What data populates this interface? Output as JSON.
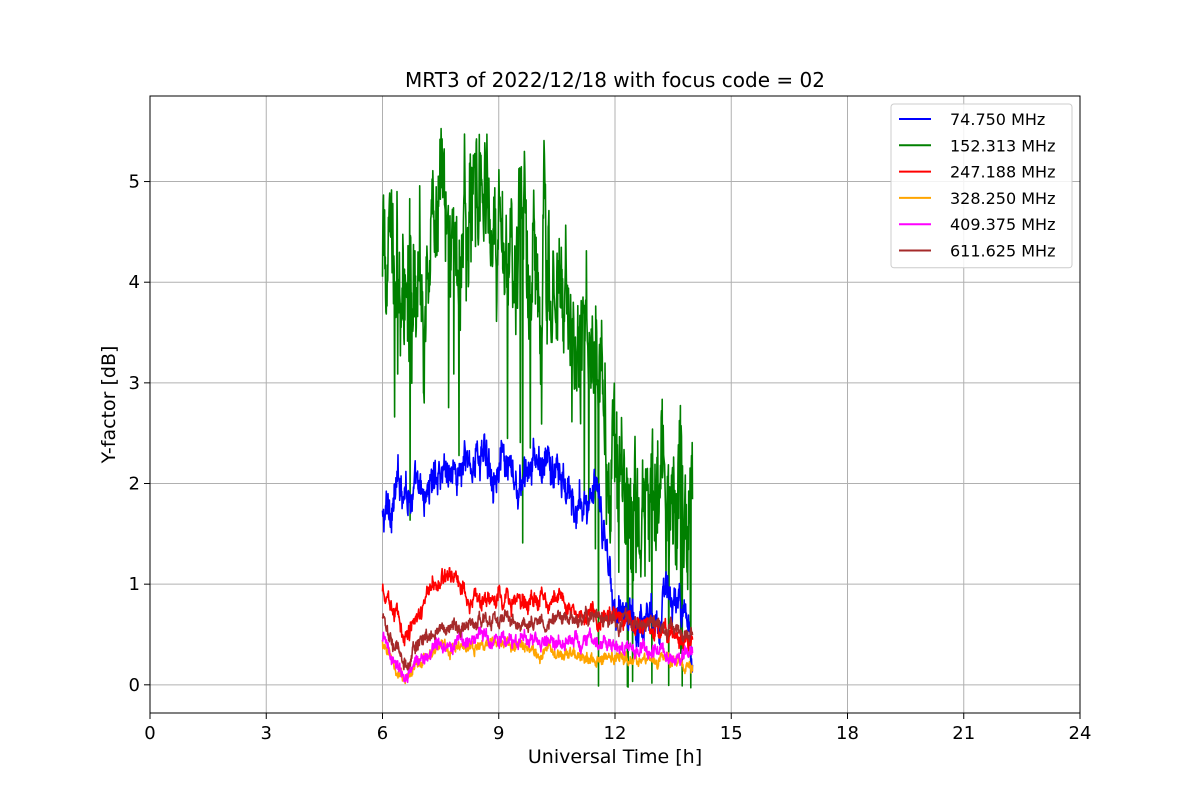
{
  "chart_data": {
    "type": "line",
    "title": "MRT3 of 2022/12/18 with focus code = 02",
    "xlabel": "Universal Time [h]",
    "ylabel": "Y-factor [dB]",
    "xlim": [
      0,
      24
    ],
    "ylim": [
      -0.28,
      5.85
    ],
    "xticks": [
      0,
      3,
      6,
      9,
      12,
      15,
      18,
      21,
      24
    ],
    "yticks": [
      0,
      1,
      2,
      3,
      4,
      5
    ],
    "grid": true,
    "legend_position": "top-right",
    "x_range_of_data": [
      6.0,
      14.0
    ],
    "series": [
      {
        "name": "74.750 MHz",
        "legend_label": " 74.750 MHz",
        "color": "#0000ff",
        "x": [
          6.0,
          6.5,
          7.0,
          7.5,
          8.0,
          8.5,
          9.0,
          9.5,
          10.0,
          10.5,
          11.0,
          11.5,
          12.0,
          12.5,
          13.0,
          13.5,
          14.0
        ],
        "values": [
          1.6,
          2.05,
          1.8,
          2.2,
          2.1,
          2.3,
          2.2,
          1.9,
          2.2,
          2.1,
          1.7,
          1.9,
          0.85,
          0.6,
          0.75,
          0.9,
          0.3
        ],
        "noise": 0.22
      },
      {
        "name": "152.313 MHz",
        "legend_label": "152.313 MHz",
        "color": "#008000",
        "x": [
          6.0,
          6.5,
          7.0,
          7.5,
          8.0,
          8.5,
          9.0,
          9.5,
          10.0,
          10.5,
          11.0,
          11.5,
          12.0,
          12.5,
          13.0,
          13.5,
          14.0
        ],
        "values": [
          4.1,
          4.3,
          4.3,
          4.4,
          4.5,
          4.8,
          4.3,
          4.4,
          4.0,
          4.2,
          3.6,
          3.3,
          1.9,
          1.7,
          2.1,
          1.9,
          2.0
        ],
        "noise": 0.75
      },
      {
        "name": "247.188 MHz",
        "legend_label": "247.188 MHz",
        "color": "#ff0000",
        "x": [
          6.0,
          6.3,
          6.6,
          7.0,
          7.4,
          7.8,
          8.2,
          8.6,
          9.0,
          9.5,
          10.0,
          10.5,
          11.0,
          11.5,
          12.0,
          12.5,
          13.0,
          13.5,
          14.0
        ],
        "values": [
          0.9,
          0.75,
          0.5,
          0.8,
          1.0,
          1.15,
          0.9,
          0.8,
          0.85,
          0.8,
          0.85,
          0.85,
          0.75,
          0.7,
          0.65,
          0.6,
          0.55,
          0.5,
          0.45
        ],
        "noise": 0.1
      },
      {
        "name": "328.250 MHz",
        "legend_label": "328.250 MHz",
        "color": "#ffa500",
        "x": [
          6.0,
          6.3,
          6.6,
          7.0,
          7.5,
          8.0,
          8.5,
          9.0,
          9.5,
          10.0,
          10.5,
          11.0,
          11.5,
          12.0,
          12.5,
          13.0,
          13.5,
          14.0
        ],
        "values": [
          0.4,
          0.2,
          0.05,
          0.25,
          0.35,
          0.4,
          0.42,
          0.4,
          0.38,
          0.35,
          0.33,
          0.3,
          0.28,
          0.26,
          0.25,
          0.24,
          0.22,
          0.2
        ],
        "noise": 0.07
      },
      {
        "name": "409.375 MHz",
        "legend_label": "409.375 MHz",
        "color": "#ff00ff",
        "x": [
          6.0,
          6.3,
          6.6,
          7.0,
          7.5,
          8.0,
          8.5,
          9.0,
          9.5,
          10.0,
          10.5,
          11.0,
          11.5,
          12.0,
          12.5,
          13.0,
          13.5,
          14.0
        ],
        "values": [
          0.45,
          0.25,
          0.05,
          0.3,
          0.4,
          0.45,
          0.48,
          0.45,
          0.42,
          0.42,
          0.45,
          0.45,
          0.42,
          0.38,
          0.35,
          0.33,
          0.3,
          0.3
        ],
        "noise": 0.08
      },
      {
        "name": "611.625 MHz",
        "legend_label": "611.625 MHz",
        "color": "#a52a2a",
        "x": [
          6.0,
          6.3,
          6.6,
          7.0,
          7.5,
          8.0,
          8.5,
          9.0,
          9.5,
          10.0,
          10.5,
          11.0,
          11.5,
          12.0,
          12.5,
          13.0,
          13.5,
          14.0
        ],
        "values": [
          0.65,
          0.4,
          0.2,
          0.45,
          0.55,
          0.6,
          0.62,
          0.65,
          0.65,
          0.62,
          0.65,
          0.65,
          0.65,
          0.62,
          0.6,
          0.58,
          0.55,
          0.5
        ],
        "noise": 0.08
      }
    ]
  }
}
